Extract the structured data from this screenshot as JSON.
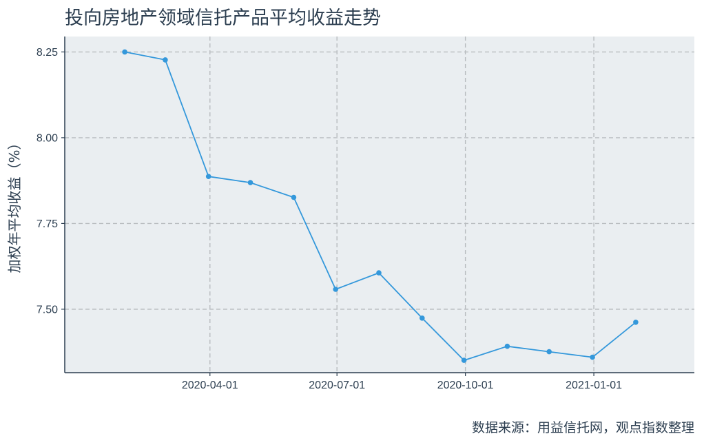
{
  "chart_data": {
    "type": "line",
    "title": "投向房地产领域信托产品平均收益走势",
    "ylabel": "加权年平均收益（%）",
    "xlabel": "",
    "source": "数据来源：用益信托网，观点指数整理",
    "ylim": [
      7.315,
      8.295
    ],
    "xlim": [
      "2019-12-19",
      "2021-03-14"
    ],
    "y_ticks": [
      7.5,
      7.75,
      8.0,
      8.25
    ],
    "y_tick_labels": [
      "7.50",
      "7.75",
      "8.00",
      "8.25"
    ],
    "x_ticks": [
      "2020-04-01",
      "2020-07-01",
      "2020-10-01",
      "2021-01-01"
    ],
    "x_tick_labels": [
      "2020-04-01",
      "2020-07-01",
      "2020-10-01",
      "2021-01-01"
    ],
    "grid": true,
    "colors": {
      "line": "#3498db",
      "plot_bg": "#eaeef1",
      "grid": "#b8bcbf",
      "axis": "#2c3e50"
    },
    "series": [
      {
        "x": [
          "2020-01-31",
          "2020-02-29",
          "2020-03-31",
          "2020-04-30",
          "2020-05-31",
          "2020-06-30",
          "2020-07-31",
          "2020-08-31",
          "2020-09-30",
          "2020-10-31",
          "2020-11-30",
          "2020-12-31",
          "2021-01-31"
        ],
        "y": [
          8.25,
          8.227,
          7.887,
          7.869,
          7.826,
          7.558,
          7.606,
          7.474,
          7.351,
          7.392,
          7.376,
          7.36,
          7.462
        ]
      }
    ]
  }
}
